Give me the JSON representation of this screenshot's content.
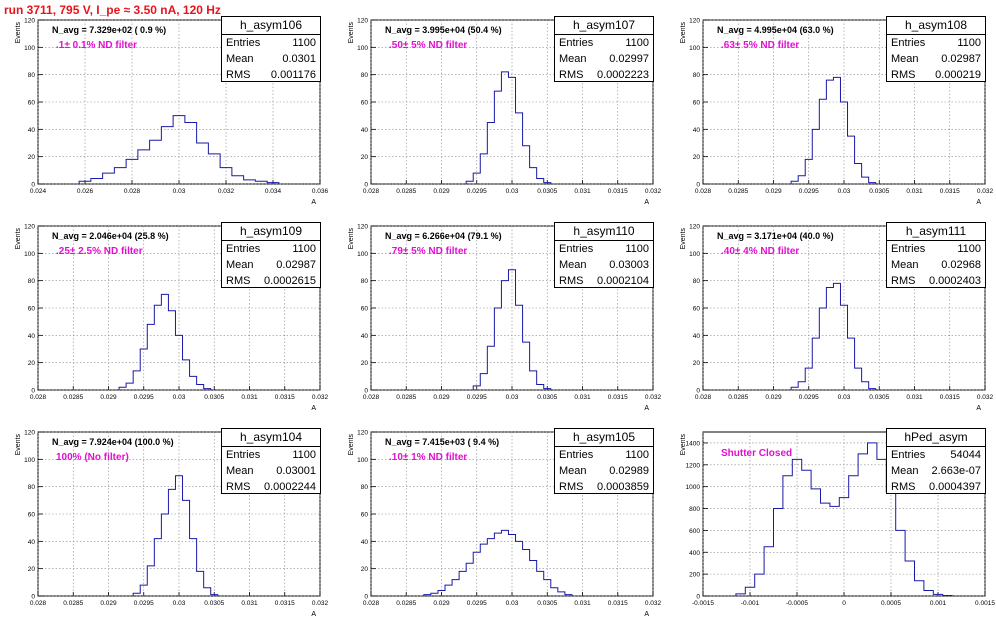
{
  "title": "run 3711,   795 V, I_pe ≈ 3.50 nA, 120 Hz",
  "panels": [
    {
      "name": "h_asym106",
      "entries": "1100",
      "mean": "0.0301",
      "rms": "0.001176",
      "navg": "N_avg = 7.329e+02 ( 0.9 %)",
      "filter": ".1± 0.1% ND filter",
      "ylabel": "Events",
      "xlabel": "A",
      "xlim": [
        0.024,
        0.036
      ],
      "ylim": [
        0,
        120
      ],
      "xticks": [
        "0.024",
        "0.026",
        "0.028",
        "0.03",
        "0.032",
        "0.034",
        "0.036"
      ],
      "xtick_vals": [
        0.024,
        0.026,
        0.028,
        0.03,
        0.032,
        0.034,
        0.036
      ],
      "yticks": [
        "0",
        "20",
        "40",
        "60",
        "80",
        "100",
        "120"
      ],
      "ytick_vals": [
        0,
        20,
        40,
        60,
        80,
        100,
        120
      ],
      "chart_data": {
        "type": "histogram",
        "title": "h_asym106",
        "x": [
          0.026,
          0.0265,
          0.027,
          0.0275,
          0.028,
          0.0285,
          0.029,
          0.0295,
          0.03,
          0.0305,
          0.031,
          0.0315,
          0.032,
          0.0325,
          0.033,
          0.0335,
          0.034
        ],
        "values": [
          2,
          4,
          8,
          12,
          18,
          25,
          32,
          42,
          50,
          45,
          30,
          22,
          12,
          6,
          3,
          2,
          1
        ]
      }
    },
    {
      "name": "h_asym107",
      "entries": "1100",
      "mean": "0.02997",
      "rms": "0.0002223",
      "navg": "N_avg = 3.995e+04 (50.4 %)",
      "filter": ".50± 5% ND filter",
      "ylabel": "Events",
      "xlabel": "A",
      "xlim": [
        0.028,
        0.032
      ],
      "ylim": [
        0,
        120
      ],
      "xticks": [
        "0.028",
        "0.0285",
        "0.029",
        "0.0295",
        "0.03",
        "0.0305",
        "0.031",
        "0.0315",
        "0.032"
      ],
      "xtick_vals": [
        0.028,
        0.0285,
        0.029,
        0.0295,
        0.03,
        0.0305,
        0.031,
        0.0315,
        0.032
      ],
      "yticks": [
        "0",
        "20",
        "40",
        "60",
        "80",
        "100",
        "120"
      ],
      "ytick_vals": [
        0,
        20,
        40,
        60,
        80,
        100,
        120
      ],
      "chart_data": {
        "type": "histogram",
        "title": "h_asym107",
        "x": [
          0.0294,
          0.0295,
          0.0296,
          0.0297,
          0.0298,
          0.0299,
          0.03,
          0.0301,
          0.0302,
          0.0303,
          0.0304,
          0.0305
        ],
        "values": [
          2,
          8,
          22,
          45,
          68,
          82,
          78,
          52,
          28,
          12,
          4,
          1
        ]
      }
    },
    {
      "name": "h_asym108",
      "entries": "1100",
      "mean": "0.02987",
      "rms": "0.000219",
      "navg": "N_avg = 4.995e+04 (63.0 %)",
      "filter": ".63± 5% ND filter",
      "ylabel": "Events",
      "xlabel": "A",
      "xlim": [
        0.028,
        0.032
      ],
      "ylim": [
        0,
        120
      ],
      "xticks": [
        "0.028",
        "0.0285",
        "0.029",
        "0.0295",
        "0.03",
        "0.0305",
        "0.031",
        "0.0315",
        "0.032"
      ],
      "xtick_vals": [
        0.028,
        0.0285,
        0.029,
        0.0295,
        0.03,
        0.0305,
        0.031,
        0.0315,
        0.032
      ],
      "yticks": [
        "0",
        "20",
        "40",
        "60",
        "80",
        "100",
        "120"
      ],
      "ytick_vals": [
        0,
        20,
        40,
        60,
        80,
        100,
        120
      ],
      "chart_data": {
        "type": "histogram",
        "title": "h_asym108",
        "x": [
          0.0293,
          0.0294,
          0.0295,
          0.0296,
          0.0297,
          0.0298,
          0.0299,
          0.03,
          0.0301,
          0.0302,
          0.0303,
          0.0304
        ],
        "values": [
          2,
          6,
          18,
          40,
          62,
          76,
          78,
          60,
          35,
          15,
          5,
          1
        ]
      }
    },
    {
      "name": "h_asym109",
      "entries": "1100",
      "mean": "0.02987",
      "rms": "0.0002615",
      "navg": "N_avg = 2.046e+04 (25.8 %)",
      "filter": ".25± 2.5% ND filter",
      "ylabel": "Events",
      "xlabel": "A",
      "xlim": [
        0.028,
        0.032
      ],
      "ylim": [
        0,
        120
      ],
      "xticks": [
        "0.028",
        "0.0285",
        "0.029",
        "0.0295",
        "0.03",
        "0.0305",
        "0.031",
        "0.0315",
        "0.032"
      ],
      "xtick_vals": [
        0.028,
        0.0285,
        0.029,
        0.0295,
        0.03,
        0.0305,
        0.031,
        0.0315,
        0.032
      ],
      "yticks": [
        "0",
        "20",
        "40",
        "60",
        "80",
        "100",
        "120"
      ],
      "ytick_vals": [
        0,
        20,
        40,
        60,
        80,
        100,
        120
      ],
      "chart_data": {
        "type": "histogram",
        "title": "h_asym109",
        "x": [
          0.0292,
          0.0293,
          0.0294,
          0.0295,
          0.0296,
          0.0297,
          0.0298,
          0.0299,
          0.03,
          0.0301,
          0.0302,
          0.0303,
          0.0304
        ],
        "values": [
          2,
          5,
          14,
          30,
          48,
          62,
          70,
          58,
          40,
          22,
          10,
          4,
          1
        ]
      }
    },
    {
      "name": "h_asym110",
      "entries": "1100",
      "mean": "0.03003",
      "rms": "0.0002104",
      "navg": "N_avg = 6.266e+04 (79.1 %)",
      "filter": ".79± 5% ND filter",
      "ylabel": "Events",
      "xlabel": "A",
      "xlim": [
        0.028,
        0.032
      ],
      "ylim": [
        0,
        120
      ],
      "xticks": [
        "0.028",
        "0.0285",
        "0.029",
        "0.0295",
        "0.03",
        "0.0305",
        "0.031",
        "0.0315",
        "0.032"
      ],
      "xtick_vals": [
        0.028,
        0.0285,
        0.029,
        0.0295,
        0.03,
        0.0305,
        0.031,
        0.0315,
        0.032
      ],
      "yticks": [
        "0",
        "20",
        "40",
        "60",
        "80",
        "100",
        "120"
      ],
      "ytick_vals": [
        0,
        20,
        40,
        60,
        80,
        100,
        120
      ],
      "chart_data": {
        "type": "histogram",
        "title": "h_asym110",
        "x": [
          0.0295,
          0.0296,
          0.0297,
          0.0298,
          0.0299,
          0.03,
          0.0301,
          0.0302,
          0.0303,
          0.0304,
          0.0305
        ],
        "values": [
          3,
          12,
          32,
          60,
          80,
          88,
          62,
          35,
          14,
          4,
          1
        ]
      }
    },
    {
      "name": "h_asym111",
      "entries": "1100",
      "mean": "0.02968",
      "rms": "0.0002403",
      "navg": "N_avg = 3.171e+04 (40.0 %)",
      "filter": ".40± 4% ND filter",
      "ylabel": "Events",
      "xlabel": "A",
      "xlim": [
        0.028,
        0.032
      ],
      "ylim": [
        0,
        120
      ],
      "xticks": [
        "0.028",
        "0.0285",
        "0.029",
        "0.0295",
        "0.03",
        "0.0305",
        "0.031",
        "0.0315",
        "0.032"
      ],
      "xtick_vals": [
        0.028,
        0.0285,
        0.029,
        0.0295,
        0.03,
        0.0305,
        0.031,
        0.0315,
        0.032
      ],
      "yticks": [
        "0",
        "20",
        "40",
        "60",
        "80",
        "100",
        "120"
      ],
      "ytick_vals": [
        0,
        20,
        40,
        60,
        80,
        100,
        120
      ],
      "chart_data": {
        "type": "histogram",
        "title": "h_asym111",
        "x": [
          0.0293,
          0.0294,
          0.0295,
          0.0296,
          0.0297,
          0.0298,
          0.0299,
          0.03,
          0.0301,
          0.0302,
          0.0303,
          0.0304
        ],
        "values": [
          2,
          6,
          16,
          38,
          60,
          75,
          78,
          62,
          38,
          16,
          6,
          1
        ]
      }
    },
    {
      "name": "h_asym104",
      "entries": "1100",
      "mean": "0.03001",
      "rms": "0.0002244",
      "navg": "N_avg = 7.924e+04 (100.0 %)",
      "filter": "100% (No filter)",
      "ylabel": "Events",
      "xlabel": "A",
      "xlim": [
        0.028,
        0.032
      ],
      "ylim": [
        0,
        120
      ],
      "xticks": [
        "0.028",
        "0.0285",
        "0.029",
        "0.0295",
        "0.03",
        "0.0305",
        "0.031",
        "0.0315",
        "0.032"
      ],
      "xtick_vals": [
        0.028,
        0.0285,
        0.029,
        0.0295,
        0.03,
        0.0305,
        0.031,
        0.0315,
        0.032
      ],
      "yticks": [
        "0",
        "20",
        "40",
        "60",
        "80",
        "100",
        "120"
      ],
      "ytick_vals": [
        0,
        20,
        40,
        60,
        80,
        100,
        120
      ],
      "chart_data": {
        "type": "histogram",
        "title": "h_asym104",
        "x": [
          0.0294,
          0.0295,
          0.0296,
          0.0297,
          0.0298,
          0.0299,
          0.03,
          0.0301,
          0.0302,
          0.0303,
          0.0304,
          0.0305
        ],
        "values": [
          2,
          8,
          22,
          42,
          60,
          78,
          88,
          70,
          42,
          18,
          6,
          1
        ]
      }
    },
    {
      "name": "h_asym105",
      "entries": "1100",
      "mean": "0.02989",
      "rms": "0.0003859",
      "navg": "N_avg = 7.415e+03 ( 9.4 %)",
      "filter": ".10± 1% ND filter",
      "ylabel": "Events",
      "xlabel": "A",
      "xlim": [
        0.028,
        0.032
      ],
      "ylim": [
        0,
        120
      ],
      "xticks": [
        "0.028",
        "0.0285",
        "0.029",
        "0.0295",
        "0.03",
        "0.0305",
        "0.031",
        "0.0315",
        "0.032"
      ],
      "xtick_vals": [
        0.028,
        0.0285,
        0.029,
        0.0295,
        0.03,
        0.0305,
        0.031,
        0.0315,
        0.032
      ],
      "yticks": [
        "0",
        "20",
        "40",
        "60",
        "80",
        "100",
        "120"
      ],
      "ytick_vals": [
        0,
        20,
        40,
        60,
        80,
        100,
        120
      ],
      "chart_data": {
        "type": "histogram",
        "title": "h_asym105",
        "x": [
          0.0288,
          0.0289,
          0.029,
          0.0291,
          0.0292,
          0.0293,
          0.0294,
          0.0295,
          0.0296,
          0.0297,
          0.0298,
          0.0299,
          0.03,
          0.0301,
          0.0302,
          0.0303,
          0.0304,
          0.0305,
          0.0306,
          0.0307,
          0.0308
        ],
        "values": [
          1,
          2,
          4,
          8,
          12,
          18,
          24,
          32,
          38,
          42,
          46,
          48,
          45,
          40,
          34,
          26,
          18,
          12,
          6,
          3,
          1
        ]
      }
    },
    {
      "name": "hPed_asym",
      "entries": "54044",
      "mean": "2.663e-07",
      "rms": "0.0004397",
      "navg": "",
      "filter": "Shutter Closed",
      "ylabel": "Events",
      "xlabel": "",
      "xlim": [
        -0.0015,
        0.0015
      ],
      "ylim": [
        0,
        1500
      ],
      "xticks": [
        "-0.0015",
        "-0.001",
        "-0.0005",
        "0",
        "0.0005",
        "0.001",
        "0.0015"
      ],
      "xtick_vals": [
        -0.0015,
        -0.001,
        -0.0005,
        0,
        0.0005,
        0.001,
        0.0015
      ],
      "yticks": [
        "0",
        "200",
        "400",
        "600",
        "800",
        "1000",
        "1200",
        "1400"
      ],
      "ytick_vals": [
        0,
        200,
        400,
        600,
        800,
        1000,
        1200,
        1400
      ],
      "chart_data": {
        "type": "histogram",
        "title": "hPed_asym",
        "x": [
          -0.0011,
          -0.001,
          -0.0009,
          -0.0008,
          -0.0007,
          -0.0006,
          -0.0005,
          -0.0004,
          -0.0003,
          -0.0002,
          -0.0001,
          0.0,
          0.0001,
          0.0002,
          0.0003,
          0.0004,
          0.0005,
          0.0006,
          0.0007,
          0.0008,
          0.0009,
          0.001,
          0.0011
        ],
        "values": [
          20,
          80,
          200,
          450,
          800,
          1100,
          1250,
          1150,
          980,
          850,
          820,
          900,
          1100,
          1300,
          1400,
          1250,
          950,
          600,
          320,
          140,
          50,
          15,
          5
        ]
      }
    }
  ]
}
